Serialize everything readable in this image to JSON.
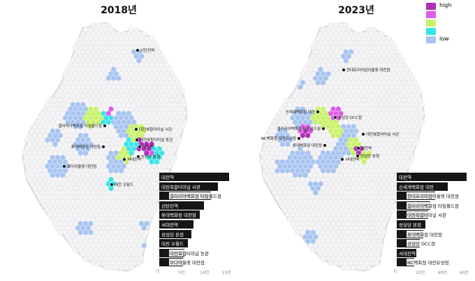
{
  "panels": [
    {
      "title": "2018년",
      "map_labels": [
        "신탄진역",
        "갤러리아백화점 타임월드점",
        "대전복합터미널 서관",
        "대전복합터미널 동관",
        "롯데백화점 대전점",
        "대전역",
        "서대전역",
        "성심당 본점",
        "모다아울렛 대전점",
        "대전 오월드"
      ],
      "ranking": {
        "labels": [
          "대전역",
          "대전복합터미널 서관",
          "갤러리아백화점 타임월드점",
          "신탄진역",
          "롯데백화점 대전점",
          "서대전역",
          "성심당 본점",
          "대전 오월드",
          "대전복합터미널 동관",
          "모다아울렛 대전점"
        ],
        "values": [
          16,
          13.5,
          11.8,
          10.2,
          9.3,
          7.8,
          7.3,
          6.6,
          5.8,
          5.5
        ],
        "ticks": [
          "0",
          "5만",
          "10만",
          "15만"
        ],
        "tick_values": [
          0,
          5,
          10,
          15
        ],
        "max": 16
      }
    },
    {
      "title": "2023년",
      "map_labels": [
        "현대프리미엄아울렛 대전점",
        "성심당 DCC점",
        "신세계백화점 대전",
        "갤러리아백화점 타임월드점",
        "대전복합터미널 서관",
        "NC백화점 대전유성점",
        "롯데백화점 대전점",
        "대전역",
        "성심당 본점",
        "서대전역"
      ],
      "ranking": {
        "labels": [
          "대전역",
          "신세계백화점 대전",
          "현대프리미엄아울렛 대전점",
          "갤러리아백화점 타임월드점",
          "대전복합터미널 서관",
          "성심당 본점",
          "롯데백화점 대전점",
          "성심당 DCC점",
          "서대전역",
          "NC백화점 대전유성점"
        ],
        "values": [
          64,
          47,
          35,
          31,
          29,
          26,
          24,
          21,
          18,
          16
        ],
        "ticks": [
          "0",
          "20만",
          "40만",
          "60만"
        ],
        "tick_values": [
          0,
          20,
          40,
          60
        ],
        "max": 64
      }
    }
  ],
  "legend": {
    "items": [
      {
        "label": "high",
        "color": "#b12fb8"
      },
      {
        "label": "",
        "color": "#e05ce6"
      },
      {
        "label": "",
        "color": "#c9f26a"
      },
      {
        "label": "",
        "color": "#38e6e6"
      },
      {
        "label": "low",
        "color": "#a8c4f0"
      }
    ]
  },
  "colors": {
    "empty_hex": "#f4f4f6",
    "hex_stroke": "#d9d9df",
    "low": "#a8c4f0",
    "midlow": "#38e6e6",
    "mid": "#c9f26a",
    "midhigh": "#e05ce6",
    "high": "#b12fb8",
    "bar": "#161616"
  }
}
